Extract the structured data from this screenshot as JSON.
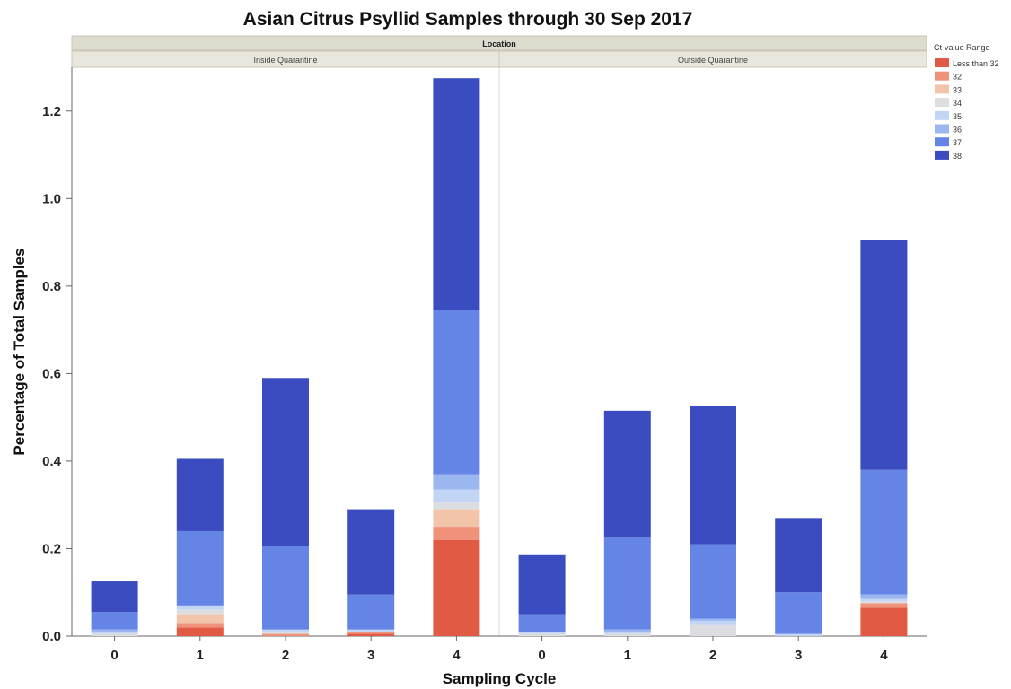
{
  "chart_data": {
    "type": "bar",
    "stacked": true,
    "title": "Asian Citrus Psyllid Samples through 30 Sep 2017",
    "xlabel": "Sampling Cycle",
    "ylabel": "Percentage of Total Samples",
    "ylim": [
      0,
      1.3
    ],
    "yticks": [
      "0.0",
      "0.2",
      "0.4",
      "0.6",
      "0.8",
      "1.0",
      "1.2"
    ],
    "grid": false,
    "legend_position": "top-right",
    "legend_title": "Ct-value Range",
    "facet_header": "Location",
    "facets": [
      "Inside Quarantine",
      "Outside Quarantine"
    ],
    "categories": [
      "0",
      "1",
      "2",
      "3",
      "4"
    ],
    "series": [
      {
        "name": "Less than 32",
        "color": "#e05a44",
        "inside": [
          0.0,
          0.02,
          0.0,
          0.005,
          0.22
        ],
        "outside": [
          0.0,
          0.0,
          0.0,
          0.0,
          0.065
        ]
      },
      {
        "name": "32",
        "color": "#f0917a",
        "inside": [
          0.0,
          0.01,
          0.005,
          0.005,
          0.03
        ],
        "outside": [
          0.0,
          0.0,
          0.0,
          0.0,
          0.01
        ]
      },
      {
        "name": "33",
        "color": "#f2c4aa",
        "inside": [
          0.0,
          0.02,
          0.0,
          0.0,
          0.04
        ],
        "outside": [
          0.0,
          0.0,
          0.0,
          0.0,
          0.0
        ]
      },
      {
        "name": "34",
        "color": "#dcdde0",
        "inside": [
          0.005,
          0.01,
          0.005,
          0.0,
          0.015
        ],
        "outside": [
          0.005,
          0.005,
          0.025,
          0.0,
          0.005
        ]
      },
      {
        "name": "35",
        "color": "#c3d5f5",
        "inside": [
          0.005,
          0.01,
          0.005,
          0.005,
          0.03
        ],
        "outside": [
          0.005,
          0.005,
          0.01,
          0.005,
          0.005
        ]
      },
      {
        "name": "36",
        "color": "#9cb7ef",
        "inside": [
          0.005,
          0.0,
          0.0,
          0.0,
          0.035
        ],
        "outside": [
          0.0,
          0.005,
          0.005,
          0.0,
          0.01
        ]
      },
      {
        "name": "37",
        "color": "#6585e6",
        "inside": [
          0.04,
          0.17,
          0.19,
          0.08,
          0.375
        ],
        "outside": [
          0.04,
          0.21,
          0.17,
          0.095,
          0.285
        ]
      },
      {
        "name": "38",
        "color": "#3a4cbf",
        "inside": [
          0.07,
          0.165,
          0.385,
          0.195,
          0.53
        ],
        "outside": [
          0.135,
          0.29,
          0.315,
          0.17,
          0.525
        ]
      }
    ]
  }
}
